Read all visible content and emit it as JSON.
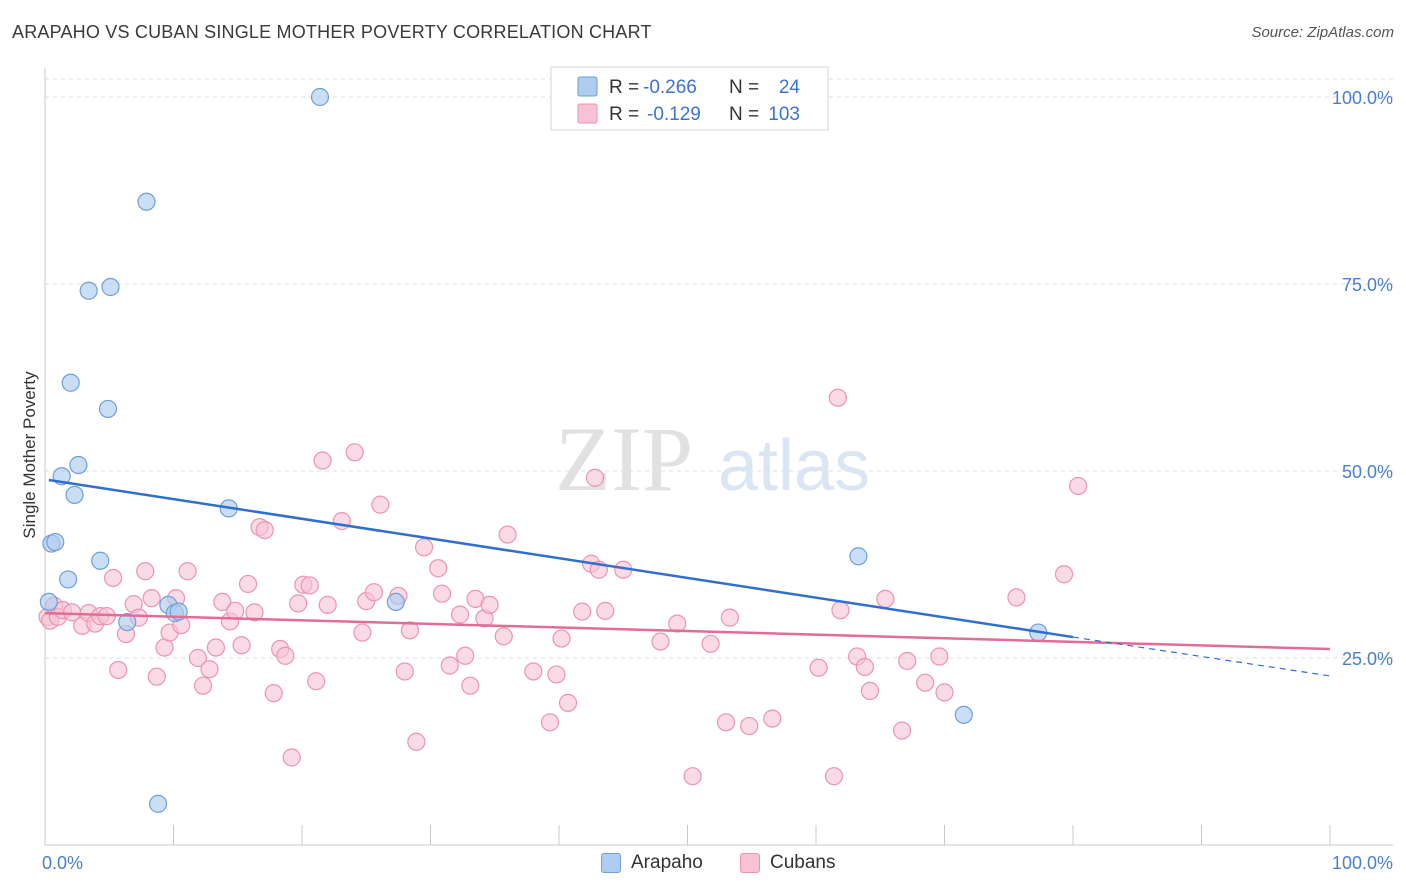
{
  "header": {
    "title": "ARAPAHO VS CUBAN SINGLE MOTHER POVERTY CORRELATION CHART",
    "source": "Source: ZipAtlas.com"
  },
  "watermark": {
    "zip": "ZIP",
    "atlas": "atlas"
  },
  "legend": {
    "rows": [
      {
        "r_label": "R =",
        "r_value": "-0.266",
        "n_label": "N =",
        "n_value": "24"
      },
      {
        "r_label": "R =",
        "r_value": "-0.129",
        "n_label": "N =",
        "n_value": "103"
      }
    ]
  },
  "bottom_legend": {
    "arapaho": "Arapaho",
    "cubans": "Cubans"
  },
  "chart_data": {
    "type": "scatter",
    "title": "ARAPAHO VS CUBAN SINGLE MOTHER POVERTY CORRELATION CHART",
    "xlabel": "",
    "ylabel": "Single Mother Poverty",
    "xlim": [
      0,
      105
    ],
    "ylim": [
      0,
      101
    ],
    "x_tick_labels": [
      "0.0%",
      "100.0%"
    ],
    "y_ticks": [
      25,
      50,
      75,
      100
    ],
    "y_tick_labels": [
      "25.0%",
      "50.0%",
      "75.0%",
      "100.0%"
    ],
    "grid": true,
    "colors": {
      "arapaho_fill": "#aecdf0",
      "arapaho_stroke": "#6f9fd8",
      "arapaho_line": "#2f6fd0",
      "cubans_fill": "#f7c3d3",
      "cubans_stroke": "#ec93b0",
      "cubans_line": "#e46b95",
      "tick_text": "#4a7fcc",
      "grid": "#dddddd"
    },
    "series": [
      {
        "name": "Arapaho",
        "points": [
          [
            0.3,
            32.5
          ],
          [
            0.5,
            40.3
          ],
          [
            0.8,
            40.5
          ],
          [
            1.3,
            49.3
          ],
          [
            1.8,
            35.5
          ],
          [
            2.0,
            61.8
          ],
          [
            2.3,
            46.8
          ],
          [
            2.6,
            50.8
          ],
          [
            3.4,
            74.1
          ],
          [
            4.3,
            38.0
          ],
          [
            4.9,
            58.3
          ],
          [
            5.1,
            74.6
          ],
          [
            6.4,
            29.8
          ],
          [
            7.9,
            86.0
          ],
          [
            8.8,
            5.5
          ],
          [
            9.6,
            32.1
          ],
          [
            10.1,
            31.0
          ],
          [
            10.4,
            31.2
          ],
          [
            14.3,
            45.0
          ],
          [
            21.4,
            100.0
          ],
          [
            27.3,
            32.5
          ],
          [
            63.3,
            38.6
          ],
          [
            77.3,
            28.4
          ],
          [
            71.5,
            17.4
          ]
        ],
        "trend": {
          "x0": 0.3,
          "y0": 48.8,
          "x1": 80,
          "y1": 27.8,
          "dash_x1": 100,
          "dash_y1": 22.6
        }
      },
      {
        "name": "Cubans",
        "points": [
          [
            0.2,
            30.5
          ],
          [
            0.4,
            30.0
          ],
          [
            0.7,
            32.0
          ],
          [
            1.0,
            30.5
          ],
          [
            1.4,
            31.4
          ],
          [
            2.1,
            31.1
          ],
          [
            2.9,
            29.3
          ],
          [
            3.4,
            31.0
          ],
          [
            3.9,
            29.6
          ],
          [
            4.3,
            30.6
          ],
          [
            4.8,
            30.6
          ],
          [
            5.3,
            35.7
          ],
          [
            5.7,
            23.4
          ],
          [
            6.3,
            28.2
          ],
          [
            6.9,
            32.2
          ],
          [
            7.3,
            30.4
          ],
          [
            7.8,
            36.6
          ],
          [
            8.3,
            33.0
          ],
          [
            8.7,
            22.5
          ],
          [
            9.3,
            26.4
          ],
          [
            9.7,
            28.4
          ],
          [
            10.2,
            33.0
          ],
          [
            10.6,
            29.4
          ],
          [
            11.1,
            36.6
          ],
          [
            11.9,
            25.0
          ],
          [
            12.3,
            21.3
          ],
          [
            12.8,
            23.5
          ],
          [
            13.3,
            26.4
          ],
          [
            13.8,
            32.5
          ],
          [
            14.4,
            29.9
          ],
          [
            14.8,
            31.3
          ],
          [
            15.3,
            26.7
          ],
          [
            15.8,
            34.9
          ],
          [
            16.3,
            31.1
          ],
          [
            16.7,
            42.5
          ],
          [
            17.1,
            42.1
          ],
          [
            17.8,
            20.3
          ],
          [
            18.3,
            26.2
          ],
          [
            18.7,
            25.3
          ],
          [
            19.2,
            11.7
          ],
          [
            19.7,
            32.3
          ],
          [
            20.1,
            34.8
          ],
          [
            20.6,
            34.7
          ],
          [
            21.1,
            21.9
          ],
          [
            21.6,
            51.4
          ],
          [
            22.0,
            32.1
          ],
          [
            23.1,
            43.3
          ],
          [
            24.1,
            52.5
          ],
          [
            24.7,
            28.4
          ],
          [
            25.0,
            32.6
          ],
          [
            25.6,
            33.8
          ],
          [
            26.1,
            45.5
          ],
          [
            27.5,
            33.3
          ],
          [
            28.0,
            23.2
          ],
          [
            28.4,
            28.7
          ],
          [
            28.9,
            13.8
          ],
          [
            29.5,
            39.8
          ],
          [
            30.6,
            37.0
          ],
          [
            30.9,
            33.6
          ],
          [
            31.5,
            24.0
          ],
          [
            32.3,
            30.8
          ],
          [
            32.7,
            25.3
          ],
          [
            33.1,
            21.3
          ],
          [
            33.5,
            32.9
          ],
          [
            34.2,
            30.3
          ],
          [
            34.6,
            32.1
          ],
          [
            35.7,
            27.9
          ],
          [
            36.0,
            41.5
          ],
          [
            38.0,
            23.2
          ],
          [
            39.3,
            16.4
          ],
          [
            39.8,
            22.8
          ],
          [
            40.2,
            27.6
          ],
          [
            40.7,
            19.0
          ],
          [
            41.8,
            31.2
          ],
          [
            42.5,
            37.6
          ],
          [
            42.8,
            49.1
          ],
          [
            43.1,
            36.8
          ],
          [
            43.6,
            31.3
          ],
          [
            45.0,
            36.8
          ],
          [
            47.9,
            27.2
          ],
          [
            49.2,
            29.6
          ],
          [
            50.4,
            9.2
          ],
          [
            51.8,
            26.9
          ],
          [
            53.0,
            16.4
          ],
          [
            53.3,
            30.4
          ],
          [
            54.8,
            15.9
          ],
          [
            56.6,
            16.9
          ],
          [
            60.2,
            23.7
          ],
          [
            61.4,
            9.2
          ],
          [
            61.7,
            59.8
          ],
          [
            61.9,
            31.4
          ],
          [
            63.2,
            25.2
          ],
          [
            63.8,
            23.8
          ],
          [
            64.2,
            20.6
          ],
          [
            65.4,
            32.9
          ],
          [
            66.7,
            15.3
          ],
          [
            67.1,
            24.6
          ],
          [
            68.5,
            21.7
          ],
          [
            69.6,
            25.2
          ],
          [
            70.0,
            20.4
          ],
          [
            75.6,
            33.1
          ],
          [
            79.3,
            36.2
          ],
          [
            80.4,
            48.0
          ]
        ],
        "trend": {
          "x0": 0,
          "y0": 31.0,
          "x1": 100,
          "y1": 26.2
        }
      }
    ]
  }
}
